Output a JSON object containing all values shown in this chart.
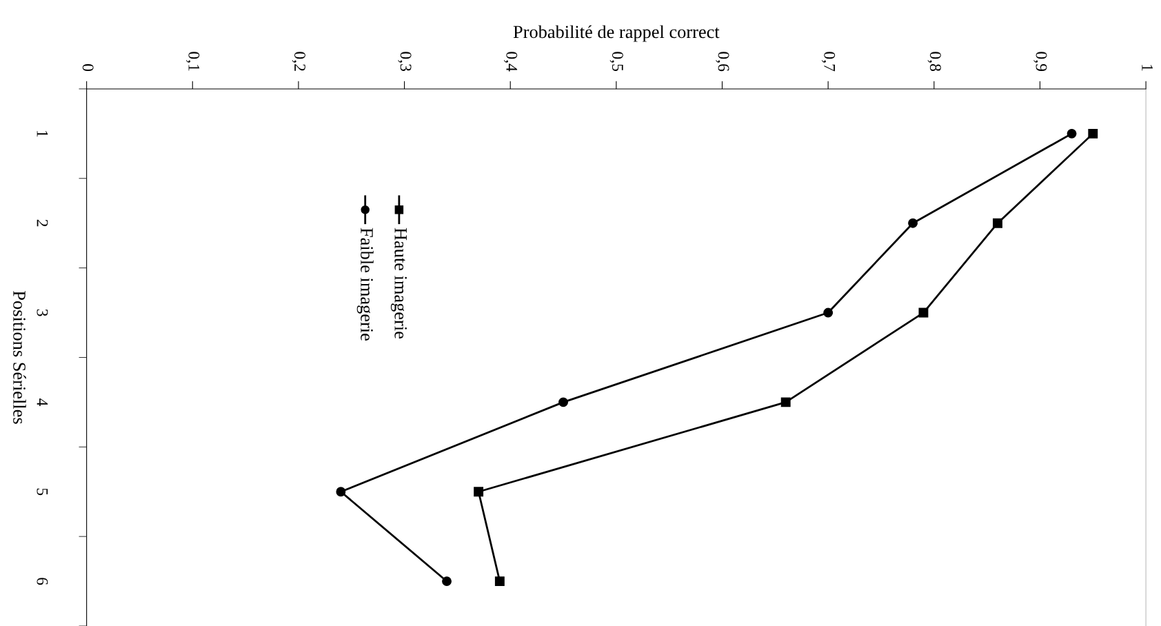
{
  "chart_data": {
    "type": "line",
    "orientation": "horizontal",
    "ylabel": "Positions Sérielles",
    "xlabel": "Probabilité de rappel correct",
    "categories": [
      "1",
      "2",
      "3",
      "4",
      "5",
      "6"
    ],
    "series": [
      {
        "name": "Haute imagerie",
        "color": "#000000",
        "marker": "square",
        "values": [
          0.95,
          0.86,
          0.79,
          0.66,
          0.37,
          0.39
        ]
      },
      {
        "name": "Faible imagerie",
        "color": "#000000",
        "marker": "circle",
        "values": [
          0.93,
          0.78,
          0.7,
          0.45,
          0.24,
          0.34
        ]
      }
    ],
    "xlim": [
      0,
      1
    ],
    "xticks": [
      {
        "value": 0,
        "label": "0"
      },
      {
        "value": 0.1,
        "label": "0,1"
      },
      {
        "value": 0.2,
        "label": "0,2"
      },
      {
        "value": 0.3,
        "label": "0,3"
      },
      {
        "value": 0.4,
        "label": "0,4"
      },
      {
        "value": 0.5,
        "label": "0,5"
      },
      {
        "value": 0.6,
        "label": "0,6"
      },
      {
        "value": 0.7,
        "label": "0,7"
      },
      {
        "value": 0.8,
        "label": "0,8"
      },
      {
        "value": 0.9,
        "label": "0,9"
      },
      {
        "value": 1,
        "label": "1"
      }
    ],
    "grid": false,
    "legend": "top left",
    "line_style": "solid"
  }
}
